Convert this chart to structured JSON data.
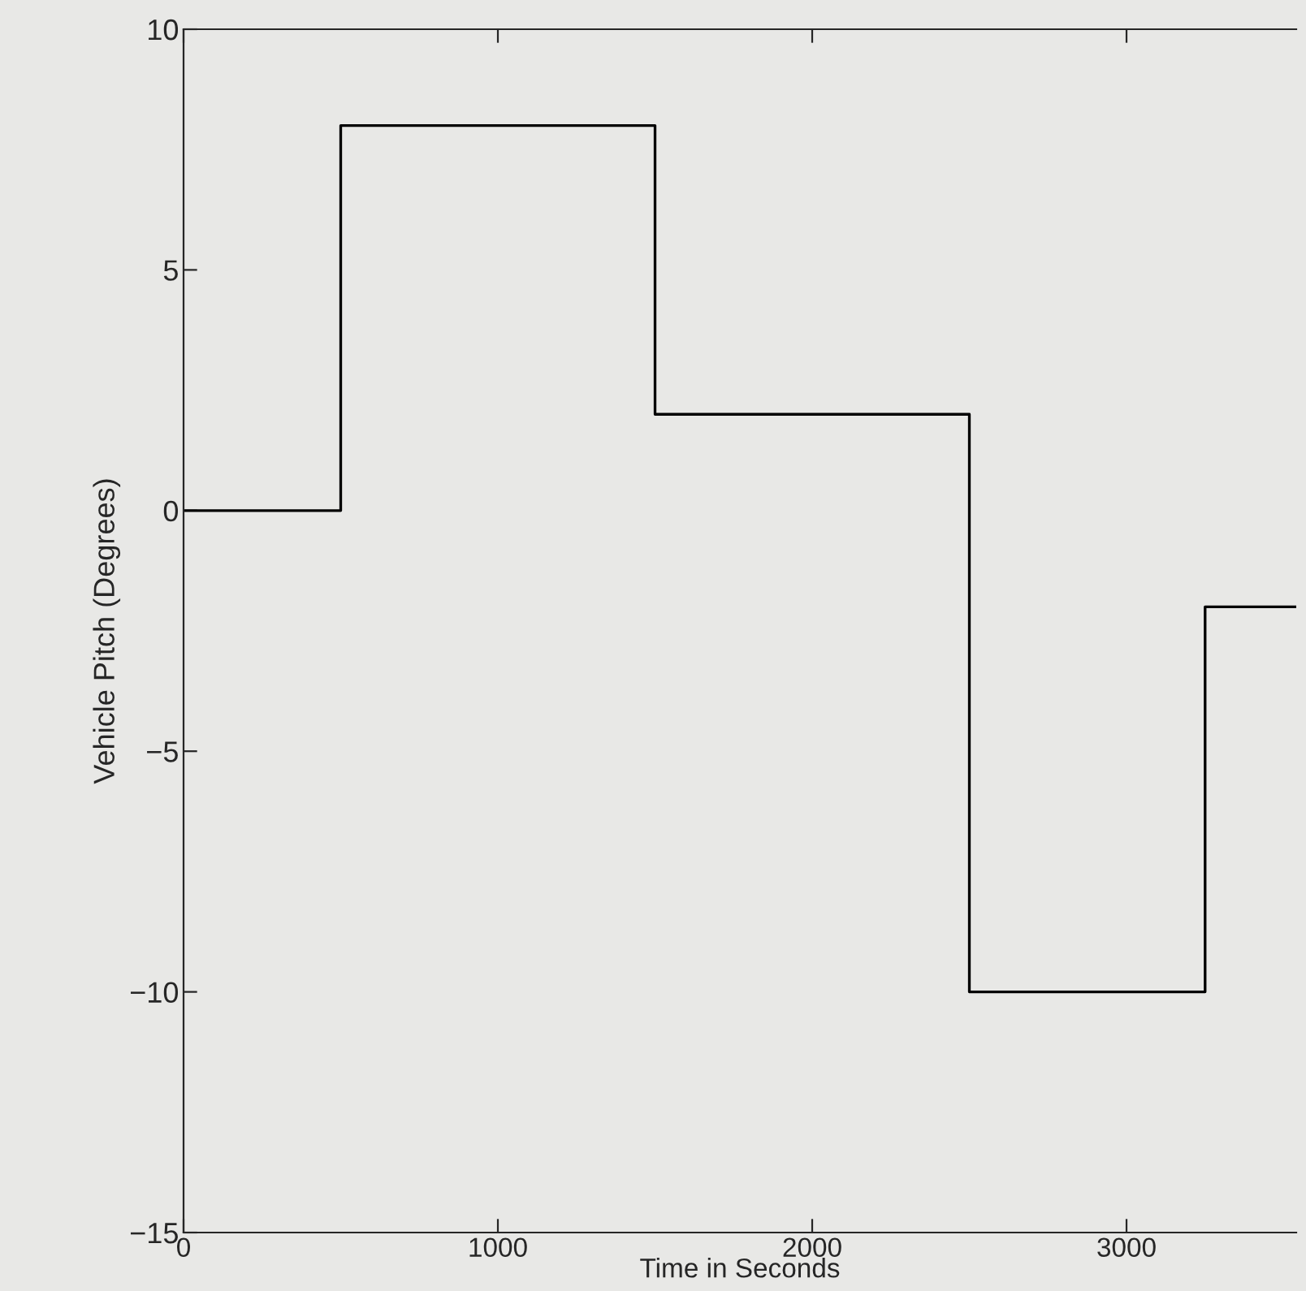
{
  "chart_data": {
    "type": "step",
    "xlabel": "Time in Seconds",
    "ylabel": "Vehicle Pitch (Degrees)",
    "x": [
      0,
      500,
      1500,
      2500,
      3250,
      3540
    ],
    "series": [
      {
        "color": "#000000",
        "values": [
          0,
          8,
          2,
          -10,
          -2,
          -2
        ]
      }
    ],
    "xlim": [
      0,
      3540
    ],
    "xticks": [
      0,
      1000,
      2000,
      3000
    ],
    "ylim": [
      -15,
      10
    ],
    "yticks": [
      -15,
      -10,
      -5,
      0,
      5,
      10
    ],
    "grid": false,
    "legend": false,
    "marker": "none",
    "line_style": "solid"
  }
}
